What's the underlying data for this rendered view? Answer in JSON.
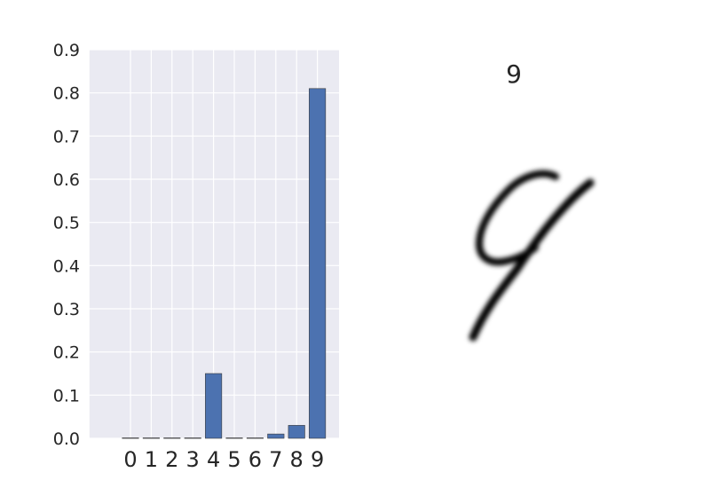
{
  "chart_data": [
    {
      "type": "bar",
      "categories": [
        "0",
        "1",
        "2",
        "3",
        "4",
        "5",
        "6",
        "7",
        "8",
        "9"
      ],
      "values": [
        0.001,
        0.001,
        0.001,
        0.001,
        0.15,
        0.001,
        0.001,
        0.01,
        0.03,
        0.81
      ],
      "title": "",
      "xlabel": "",
      "ylabel": "",
      "ylim": [
        0,
        0.9
      ],
      "yticks": [
        "0.0",
        "0.1",
        "0.2",
        "0.3",
        "0.4",
        "0.5",
        "0.6",
        "0.7",
        "0.8",
        "0.9"
      ],
      "grid": true,
      "bar_color": "#4c72b0",
      "background_color": "#eaeaf2"
    },
    {
      "type": "image",
      "title": "9",
      "content": "handwritten digit nine, grayscale"
    }
  ]
}
